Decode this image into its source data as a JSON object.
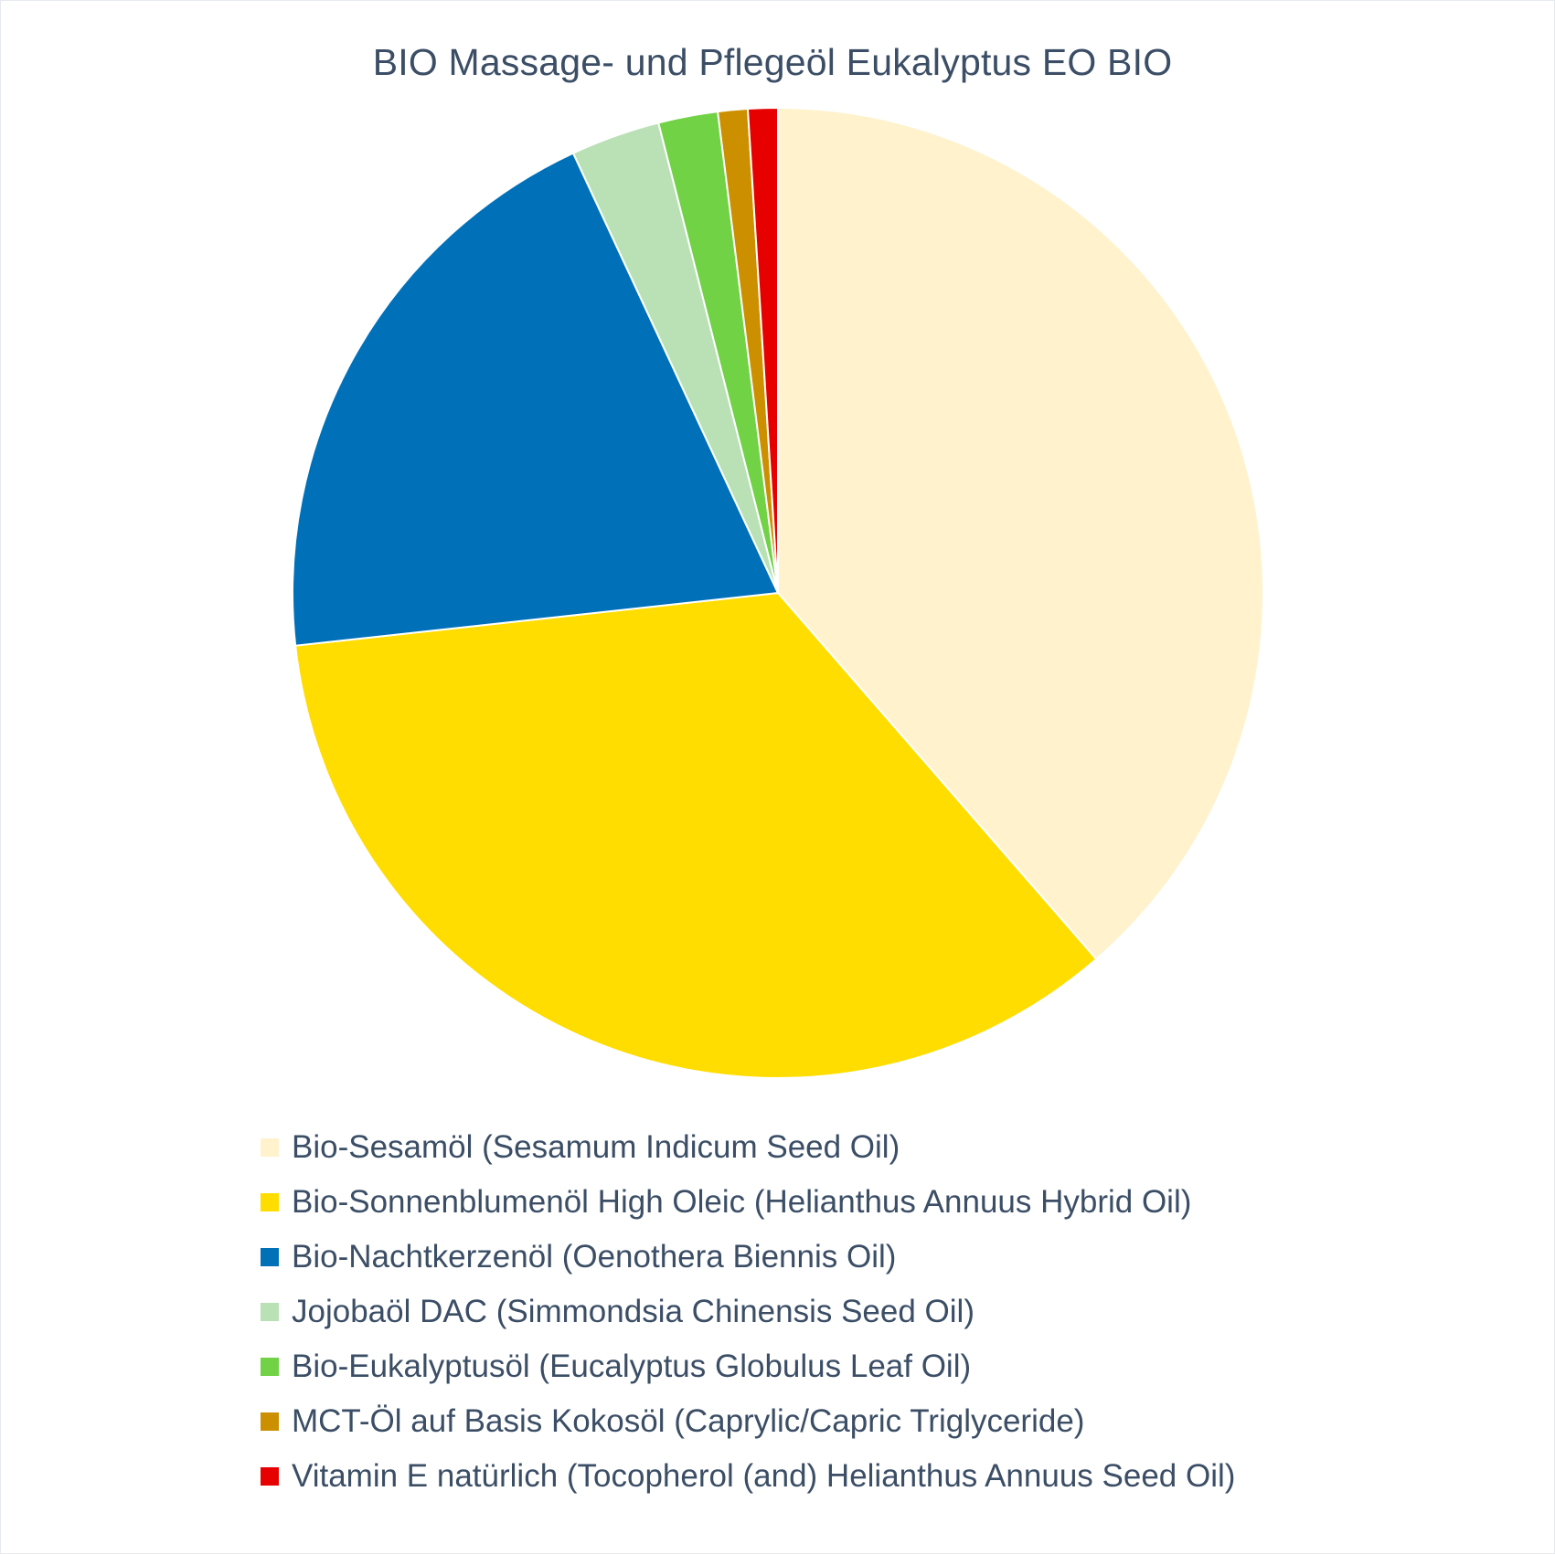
{
  "chart_data": {
    "type": "pie",
    "title": "BIO Massage- und Pflegeöl Eukalyptus EO BIO",
    "slices": [
      {
        "label": "Bio-Sesamöl (Sesamum Indicum Seed Oil)",
        "value": 39,
        "color": "#FFF2CC"
      },
      {
        "label": "Bio-Sonnenblumenöl High Oleic (Helianthus Annuus Hybrid Oil)",
        "value": 35,
        "color": "#FFDD00"
      },
      {
        "label": "Bio-Nachtkerzenöl (Oenothera Biennis Oil)",
        "value": 20,
        "color": "#0070B8"
      },
      {
        "label": "Jojobaöl DAC (Simmondsia Chinensis Seed Oil)",
        "value": 3,
        "color": "#BAE1B6"
      },
      {
        "label": "Bio-Eukalyptusöl (Eucalyptus Globulus Leaf Oil)",
        "value": 2,
        "color": "#70D244"
      },
      {
        "label": "MCT-Öl auf Basis Kokosöl (Caprylic/Capric Triglyceride)",
        "value": 1,
        "color": "#CC8F00"
      },
      {
        "label": "Vitamin E natürlich (Tocopherol (and) Helianthus Annuus Seed Oil)",
        "value": 1,
        "color": "#E60000"
      }
    ],
    "start_angle": "12 o'clock",
    "direction": "clockwise",
    "legend_position": "bottom"
  }
}
